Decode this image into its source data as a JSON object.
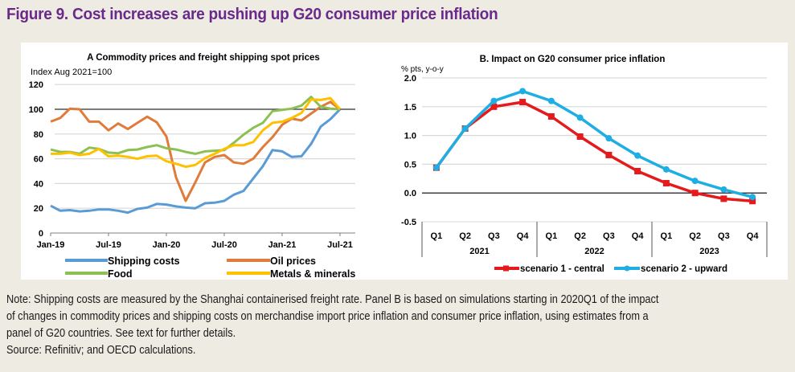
{
  "figure": {
    "title": "Figure 9. Cost increases are pushing up G20 consumer price inflation",
    "note_lines": [
      "Note: Shipping costs are measured by the Shanghai containerised freight rate. Panel B is based on simulations starting in 2020Q1 of the impact",
      "of changes in commodity prices and shipping costs on merchandise import price inflation and consumer price inflation, using estimates from a",
      "panel of G20 countries. See text for further details.",
      "Source: Refinitiv; and OECD calculations."
    ]
  },
  "colors": {
    "title": "#6a2a8c",
    "shipping": "#5b9bd5",
    "oil": "#e07b39",
    "food": "#8cc152",
    "metals": "#ffc000",
    "scenario1": "#e41a1c",
    "scenario2": "#1eaee4"
  },
  "chart_data": [
    {
      "type": "line",
      "title": "A Commodity prices and freight shipping spot prices",
      "ylabel": "Index Aug 2021=100",
      "xlabel": "",
      "ylim": [
        0,
        120
      ],
      "yticks": [
        0,
        20,
        40,
        60,
        80,
        100,
        120
      ],
      "reference_line": 100,
      "grid": true,
      "x_start": "Jan-19",
      "x_frequency": "monthly",
      "xtick_labels": [
        "Jan-19",
        "Jul-19",
        "Jan-20",
        "Jul-20",
        "Jan-21",
        "Jul-21"
      ],
      "legend_position": "bottom",
      "series": [
        {
          "name": "Shipping costs",
          "color_key": "shipping",
          "values": [
            22,
            18,
            18.5,
            17.5,
            18,
            19,
            19,
            18,
            16.5,
            19.5,
            20.5,
            23.5,
            23,
            21.5,
            20.5,
            20,
            24,
            24.5,
            26,
            31,
            34,
            44,
            54,
            67,
            66,
            61.5,
            62,
            72,
            86,
            92,
            100
          ]
        },
        {
          "name": "Oil prices",
          "color_key": "oil",
          "values": [
            90,
            93,
            100.5,
            100,
            90,
            90,
            83,
            88.5,
            84,
            89,
            94,
            89.5,
            78,
            45,
            26,
            41,
            57,
            61.5,
            63,
            57,
            56,
            60,
            69.5,
            77.5,
            87.5,
            92.5,
            91,
            96.5,
            102,
            106,
            100
          ]
        },
        {
          "name": "Food",
          "color_key": "food",
          "values": [
            67.5,
            65.5,
            65.5,
            64,
            69,
            68,
            65,
            64.5,
            67,
            67.5,
            69.5,
            71,
            68.5,
            67.5,
            65.5,
            64,
            66,
            66.5,
            67,
            73,
            79.5,
            85,
            89,
            98.5,
            99.5,
            100.5,
            103,
            110,
            102,
            100.5,
            100
          ]
        },
        {
          "name": "Metals & minerals",
          "color_key": "metals",
          "values": [
            64,
            64,
            65,
            63,
            64,
            68,
            62,
            62.5,
            61.5,
            60,
            62,
            62.5,
            58,
            56,
            53.5,
            55,
            60.5,
            64,
            68,
            71,
            71,
            73.5,
            83,
            89,
            90,
            93,
            97,
            108,
            107.5,
            109,
            100
          ]
        }
      ]
    },
    {
      "type": "line",
      "title": "B. Impact on G20 consumer price inflation",
      "ylabel": "% pts, y-o-y",
      "xlabel": "",
      "ylim": [
        -0.5,
        2.0
      ],
      "yticks": [
        "2.0",
        "1.5",
        "1.0",
        "0.5",
        "0.0",
        "-0.5"
      ],
      "ytick_values": [
        2.0,
        1.5,
        1.0,
        0.5,
        0.0,
        -0.5
      ],
      "reference_line": 0,
      "grid": true,
      "categories": [
        "Q1",
        "Q2",
        "Q3",
        "Q4",
        "Q1",
        "Q2",
        "Q3",
        "Q4",
        "Q1",
        "Q2",
        "Q3",
        "Q4"
      ],
      "groups": [
        "2021",
        "2022",
        "2023"
      ],
      "legend_position": "bottom",
      "series": [
        {
          "name": "scenario 1 - central",
          "color_key": "scenario1",
          "marker": "square",
          "values": [
            0.44,
            1.12,
            1.5,
            1.58,
            1.33,
            0.98,
            0.66,
            0.38,
            0.17,
            0.0,
            -0.1,
            -0.14
          ]
        },
        {
          "name": "scenario 2 - upward",
          "color_key": "scenario2",
          "marker": "circle",
          "values": [
            0.44,
            1.12,
            1.6,
            1.77,
            1.6,
            1.31,
            0.95,
            0.65,
            0.41,
            0.21,
            0.06,
            -0.07
          ]
        }
      ]
    }
  ]
}
